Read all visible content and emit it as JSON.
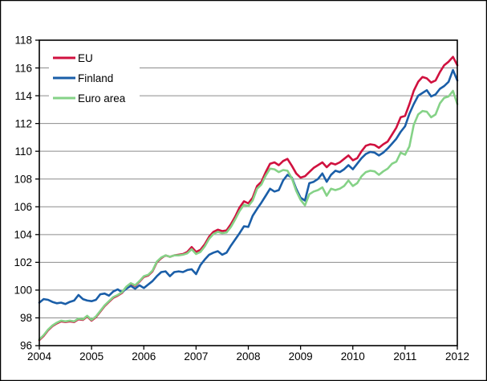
{
  "window": {
    "background": "#ffffff",
    "frame_color": "#000000"
  },
  "colors": {
    "gridline": "#8c8c8c",
    "axis": "#000000",
    "text": "#000000",
    "legend_background": "#ffffff"
  },
  "chart_data": {
    "type": "line",
    "title": "",
    "grid": "horizontal",
    "x_axis": {
      "start_year": 2004,
      "end_year": 2012,
      "points_per_year": 12,
      "tick_labels": [
        "2004",
        "2005",
        "2006",
        "2007",
        "2008",
        "2009",
        "2010",
        "2011",
        "2012"
      ]
    },
    "y_axis": {
      "min": 96,
      "max": 118,
      "tick_step": 2,
      "tick_labels": [
        "96",
        "98",
        "100",
        "102",
        "104",
        "106",
        "108",
        "110",
        "112",
        "114",
        "116",
        "118"
      ]
    },
    "legend": {
      "position": "top-left",
      "entries": [
        "EU",
        "Finland",
        "Euro area"
      ]
    },
    "series": [
      {
        "name": "EU",
        "color": "#d0113f",
        "values": [
          96.4,
          96.7,
          97.1,
          97.4,
          97.6,
          97.75,
          97.7,
          97.75,
          97.7,
          97.9,
          97.85,
          98.1,
          97.8,
          98.05,
          98.45,
          98.85,
          99.15,
          99.45,
          99.6,
          99.8,
          100.2,
          100.45,
          100.3,
          100.6,
          100.95,
          101.05,
          101.35,
          102.0,
          102.3,
          102.5,
          102.4,
          102.5,
          102.55,
          102.6,
          102.75,
          103.1,
          102.75,
          102.9,
          103.3,
          103.85,
          104.2,
          104.35,
          104.25,
          104.3,
          104.75,
          105.3,
          105.95,
          106.4,
          106.25,
          106.65,
          107.5,
          107.8,
          108.5,
          109.1,
          109.2,
          109.0,
          109.3,
          109.45,
          108.95,
          108.4,
          108.1,
          108.2,
          108.5,
          108.8,
          109.0,
          109.2,
          108.85,
          109.15,
          109.05,
          109.2,
          109.45,
          109.7,
          109.35,
          109.5,
          110.0,
          110.4,
          110.5,
          110.45,
          110.25,
          110.5,
          110.7,
          111.2,
          111.7,
          112.45,
          112.55,
          113.4,
          114.35,
          115.0,
          115.35,
          115.25,
          114.95,
          115.1,
          115.7,
          116.2,
          116.45,
          116.8,
          116.2
        ]
      },
      {
        "name": "Finland",
        "color": "#1a5ea8",
        "values": [
          99.1,
          99.35,
          99.3,
          99.15,
          99.05,
          99.1,
          99.0,
          99.15,
          99.25,
          99.65,
          99.35,
          99.25,
          99.2,
          99.3,
          99.7,
          99.75,
          99.6,
          99.9,
          100.05,
          99.85,
          100.1,
          100.3,
          100.1,
          100.35,
          100.15,
          100.4,
          100.65,
          101.0,
          101.3,
          101.35,
          101.0,
          101.3,
          101.35,
          101.3,
          101.45,
          101.5,
          101.15,
          101.8,
          102.2,
          102.55,
          102.7,
          102.8,
          102.55,
          102.7,
          103.2,
          103.65,
          104.1,
          104.6,
          104.55,
          105.35,
          105.85,
          106.3,
          106.8,
          107.3,
          107.1,
          107.2,
          107.9,
          108.3,
          108.1,
          107.3,
          106.65,
          106.45,
          107.7,
          107.8,
          108.0,
          108.4,
          107.8,
          108.3,
          108.6,
          108.5,
          108.7,
          109.0,
          108.7,
          109.1,
          109.5,
          109.8,
          109.95,
          109.9,
          109.7,
          109.9,
          110.2,
          110.55,
          110.9,
          111.4,
          111.8,
          112.7,
          113.4,
          114.0,
          114.2,
          114.4,
          113.95,
          114.1,
          114.5,
          114.7,
          115.0,
          115.85,
          115.1
        ]
      },
      {
        "name": "Euro area",
        "color": "#85d287",
        "values": [
          96.45,
          96.75,
          97.15,
          97.45,
          97.65,
          97.8,
          97.75,
          97.8,
          97.75,
          97.95,
          97.9,
          98.15,
          97.85,
          98.1,
          98.5,
          98.9,
          99.2,
          99.5,
          99.65,
          99.85,
          100.25,
          100.5,
          100.35,
          100.65,
          101.0,
          101.1,
          101.4,
          102.05,
          102.35,
          102.5,
          102.4,
          102.5,
          102.5,
          102.55,
          102.65,
          102.95,
          102.6,
          102.75,
          103.15,
          103.7,
          104.05,
          104.2,
          104.1,
          104.15,
          104.55,
          105.1,
          105.7,
          106.15,
          106.05,
          106.45,
          107.3,
          107.6,
          108.25,
          108.75,
          108.7,
          108.5,
          108.65,
          108.6,
          108.05,
          107.15,
          106.5,
          106.1,
          106.9,
          107.1,
          107.2,
          107.4,
          106.8,
          107.3,
          107.2,
          107.3,
          107.5,
          107.9,
          107.5,
          107.7,
          108.2,
          108.5,
          108.6,
          108.55,
          108.3,
          108.55,
          108.75,
          109.1,
          109.25,
          109.9,
          109.75,
          110.35,
          111.9,
          112.65,
          112.9,
          112.85,
          112.45,
          112.65,
          113.45,
          113.85,
          113.95,
          114.35,
          113.4
        ]
      }
    ]
  }
}
